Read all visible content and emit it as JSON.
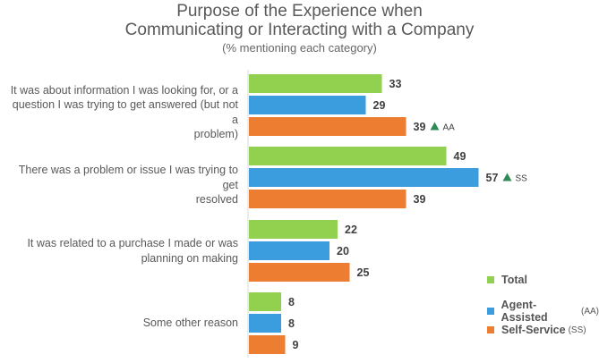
{
  "title": {
    "line1": "Purpose of the Experience when",
    "line2": "Communicating or Interacting with a Company",
    "subtitle": "(% mentioning each category)"
  },
  "colors": {
    "total": "#92d050",
    "aa": "#3b9ddd",
    "ss": "#ed7d31",
    "arrow": "#2e8b57"
  },
  "chart_data": {
    "type": "bar",
    "orientation": "horizontal",
    "title": "Purpose of the Experience when Communicating or Interacting with a Company",
    "subtitle": "(% mentioning each category)",
    "categories": [
      "It was about information I was looking for, or a question I was trying to get answered (but not a problem)",
      "There was a problem or issue I was trying to get resolved",
      "It was related to a purchase I made or was planning on making",
      "Some other reason"
    ],
    "category_lines": [
      [
        "It was about information I was looking for, or a",
        "question I was trying to get answered (but not a",
        "problem)"
      ],
      [
        "There was a problem or issue I was trying to get",
        "resolved"
      ],
      [
        "It was related to a purchase I made or was",
        "planning on making"
      ],
      [
        "Some other reason"
      ]
    ],
    "series": [
      {
        "name": "Total",
        "tag": "",
        "values": [
          33,
          49,
          22,
          8
        ]
      },
      {
        "name": "Agent-Assisted",
        "tag": "(AA)",
        "values": [
          29,
          57,
          20,
          8
        ]
      },
      {
        "name": "Self-Service",
        "tag": "(SS)",
        "values": [
          39,
          39,
          25,
          9
        ]
      }
    ],
    "annotations": [
      {
        "category_index": 0,
        "series_index": 2,
        "marker": "up-arrow",
        "text": "AA"
      },
      {
        "category_index": 1,
        "series_index": 1,
        "marker": "up-arrow",
        "text": "SS"
      }
    ],
    "xlim": [
      0,
      100
    ],
    "grid": false,
    "legend_position": "bottom-right"
  }
}
